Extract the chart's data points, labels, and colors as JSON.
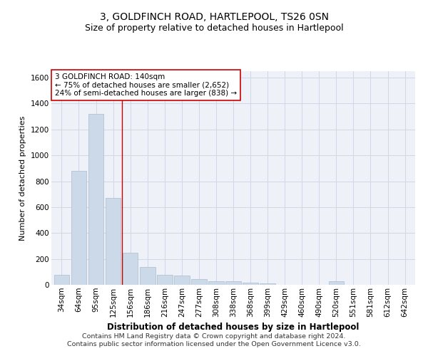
{
  "title": "3, GOLDFINCH ROAD, HARTLEPOOL, TS26 0SN",
  "subtitle": "Size of property relative to detached houses in Hartlepool",
  "xlabel": "Distribution of detached houses by size in Hartlepool",
  "ylabel": "Number of detached properties",
  "categories": [
    "34sqm",
    "64sqm",
    "95sqm",
    "125sqm",
    "156sqm",
    "186sqm",
    "216sqm",
    "247sqm",
    "277sqm",
    "308sqm",
    "338sqm",
    "368sqm",
    "399sqm",
    "429sqm",
    "460sqm",
    "490sqm",
    "520sqm",
    "551sqm",
    "581sqm",
    "612sqm",
    "642sqm"
  ],
  "values": [
    75,
    880,
    1320,
    670,
    245,
    140,
    75,
    70,
    45,
    25,
    25,
    15,
    10,
    0,
    0,
    0,
    25,
    0,
    0,
    0,
    0
  ],
  "bar_color": "#ccd9e8",
  "bar_edge_color": "#aabbcc",
  "vline_x": 3.5,
  "vline_color": "#cc0000",
  "annotation_text": "3 GOLDFINCH ROAD: 140sqm\n← 75% of detached houses are smaller (2,652)\n24% of semi-detached houses are larger (838) →",
  "annotation_box_color": "#ffffff",
  "annotation_box_edge": "#cc0000",
  "ylim": [
    0,
    1650
  ],
  "yticks": [
    0,
    200,
    400,
    600,
    800,
    1000,
    1200,
    1400,
    1600
  ],
  "grid_color": "#d0d8e8",
  "bg_color": "#eef2f8",
  "footer": "Contains HM Land Registry data © Crown copyright and database right 2024.\nContains public sector information licensed under the Open Government Licence v3.0.",
  "title_fontsize": 10,
  "subtitle_fontsize": 9,
  "annotation_fontsize": 7.5,
  "footer_fontsize": 6.8,
  "xlabel_fontsize": 8.5,
  "ylabel_fontsize": 8,
  "tick_fontsize": 7.5,
  "ytick_fontsize": 7.5
}
